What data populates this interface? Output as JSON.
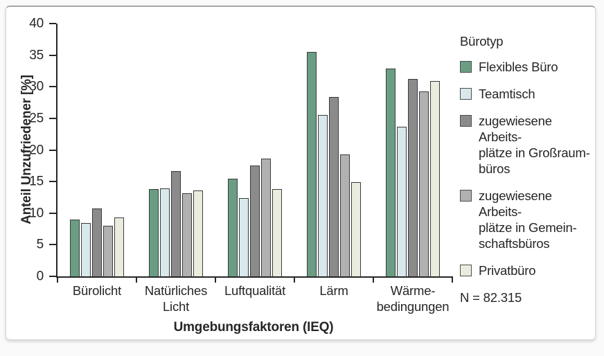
{
  "chart_data": {
    "type": "bar",
    "title": "",
    "xlabel": "Umgebungsfaktoren (IEQ)",
    "ylabel": "Anteil Unzufriedener [%]",
    "ylim": [
      0,
      40
    ],
    "yticks": [
      0,
      5,
      10,
      15,
      20,
      25,
      30,
      35,
      40
    ],
    "grid": false,
    "legend_title": "Bürotyp",
    "legend_position": "right",
    "note": "N = 82.315",
    "categories": [
      "Bürolicht",
      "Natürliches\nLicht",
      "Luftqualität",
      "Lärm",
      "Wärme-\nbedingungen"
    ],
    "series": [
      {
        "name": "Flexibles Büro",
        "legend_label": "Flexibles Büro",
        "color": "#6a9d84",
        "values": [
          9.0,
          13.8,
          15.4,
          35.5,
          32.9
        ]
      },
      {
        "name": "Teamtisch",
        "legend_label": "Teamtisch",
        "color": "#d8e8eb",
        "values": [
          8.4,
          13.9,
          12.4,
          25.5,
          23.7
        ]
      },
      {
        "name": "zugewiesene Arbeitsplätze in Großraumbüros",
        "legend_label": "zugewiesene Arbeits-\nplätze in Großraum-\nbüros",
        "color": "#8b8b8b",
        "values": [
          10.7,
          16.7,
          17.5,
          28.4,
          31.2
        ]
      },
      {
        "name": "zugewiesene Arbeitsplätze in Gemeinschaftsbüros",
        "legend_label": "zugewiesene Arbeits-\nplätze in Gemein-\nschaftsbüros",
        "color": "#b1b1b1",
        "values": [
          8.0,
          13.1,
          18.6,
          19.3,
          29.3
        ]
      },
      {
        "name": "Privatbüro",
        "legend_label": "Privatbüro",
        "color": "#ebecdd",
        "values": [
          9.3,
          13.6,
          13.8,
          14.9,
          30.9
        ]
      }
    ]
  }
}
